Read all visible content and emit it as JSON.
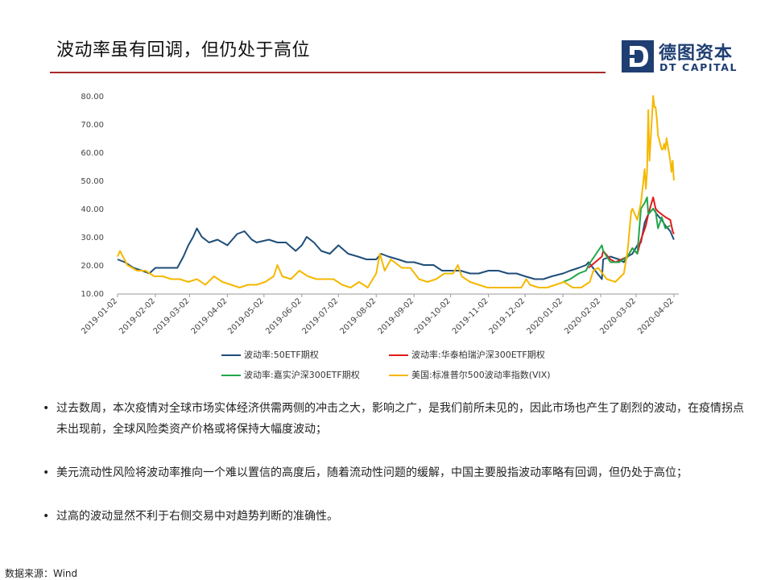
{
  "slide": {
    "title": "波动率虽有回调，但仍处于高位",
    "logo_cn": "德图资本",
    "logo_en": "DT CAPITAL",
    "source": "数据来源：Wind"
  },
  "bullets": [
    "过去数周，本次疫情对全球市场实体经济供需两侧的冲击之大，影响之广，是我们前所未见的，因此市场也产生了剧烈的波动，在疫情拐点未出现前，全球风险类资产价格或将保持大幅度波动；",
    "美元流动性风险将波动率推向一个难以置信的高度后，随着流动性问题的缓解，中国主要股指波动率略有回调，但仍处于高位；",
    "过高的波动显然不利于右侧交易中对趋势判断的准确性。"
  ],
  "colors": {
    "title_rule": "#a52a2a",
    "brand": "#1f3f73",
    "series_50etf": "#1f4e79",
    "series_huatai": "#e31a1c",
    "series_jiashi": "#22a64a",
    "series_vix": "#f5b800"
  },
  "chart_data": {
    "type": "line",
    "x_type": "date",
    "xlim": [
      "2019-01-02",
      "2020-04-06"
    ],
    "ylim": [
      10,
      80
    ],
    "yticks": [
      "10.00",
      "20.00",
      "30.00",
      "40.00",
      "50.00",
      "60.00",
      "70.00",
      "80.00"
    ],
    "xticks": [
      "2019-01-02",
      "2019-02-02",
      "2019-03-02",
      "2019-04-02",
      "2019-05-02",
      "2019-06-02",
      "2019-07-02",
      "2019-08-02",
      "2019-09-02",
      "2019-10-02",
      "2019-11-02",
      "2019-12-02",
      "2020-01-02",
      "2020-02-02",
      "2020-03-02",
      "2020-04-02"
    ],
    "grid": false,
    "legend_position": "bottom",
    "series": [
      {
        "name": "波动率:50ETF期权",
        "color": "#1f4e79",
        "points": [
          [
            "2019-01-02",
            22
          ],
          [
            "2019-01-08",
            21
          ],
          [
            "2019-01-15",
            19
          ],
          [
            "2019-01-22",
            18
          ],
          [
            "2019-01-28",
            17
          ],
          [
            "2019-02-02",
            19
          ],
          [
            "2019-02-12",
            19
          ],
          [
            "2019-02-20",
            19
          ],
          [
            "2019-02-25",
            23
          ],
          [
            "2019-03-01",
            27
          ],
          [
            "2019-03-05",
            30
          ],
          [
            "2019-03-08",
            33
          ],
          [
            "2019-03-12",
            30
          ],
          [
            "2019-03-18",
            28
          ],
          [
            "2019-03-25",
            29
          ],
          [
            "2019-04-02",
            27
          ],
          [
            "2019-04-10",
            31
          ],
          [
            "2019-04-16",
            32
          ],
          [
            "2019-04-22",
            29
          ],
          [
            "2019-04-26",
            28
          ],
          [
            "2019-05-06",
            29
          ],
          [
            "2019-05-13",
            28
          ],
          [
            "2019-05-20",
            28
          ],
          [
            "2019-05-28",
            25
          ],
          [
            "2019-06-02",
            27
          ],
          [
            "2019-06-06",
            30
          ],
          [
            "2019-06-12",
            28
          ],
          [
            "2019-06-18",
            25
          ],
          [
            "2019-06-25",
            24
          ],
          [
            "2019-07-02",
            27
          ],
          [
            "2019-07-10",
            24
          ],
          [
            "2019-07-18",
            23
          ],
          [
            "2019-07-25",
            22
          ],
          [
            "2019-08-02",
            22
          ],
          [
            "2019-08-06",
            24
          ],
          [
            "2019-08-12",
            23
          ],
          [
            "2019-08-20",
            22
          ],
          [
            "2019-08-27",
            21
          ],
          [
            "2019-09-02",
            21
          ],
          [
            "2019-09-10",
            20
          ],
          [
            "2019-09-18",
            20
          ],
          [
            "2019-09-25",
            18
          ],
          [
            "2019-10-02",
            18
          ],
          [
            "2019-10-10",
            18
          ],
          [
            "2019-10-18",
            17
          ],
          [
            "2019-10-25",
            17
          ],
          [
            "2019-11-02",
            18
          ],
          [
            "2019-11-10",
            18
          ],
          [
            "2019-11-18",
            17
          ],
          [
            "2019-11-25",
            17
          ],
          [
            "2019-12-02",
            16
          ],
          [
            "2019-12-10",
            15
          ],
          [
            "2019-12-17",
            15
          ],
          [
            "2019-12-24",
            16
          ],
          [
            "2020-01-02",
            17
          ],
          [
            "2020-01-08",
            18
          ],
          [
            "2020-01-15",
            19
          ],
          [
            "2020-01-21",
            20
          ],
          [
            "2020-01-23",
            21
          ],
          [
            "2020-02-03",
            15
          ],
          [
            "2020-02-04",
            22
          ],
          [
            "2020-02-10",
            23
          ],
          [
            "2020-02-17",
            22
          ],
          [
            "2020-02-21",
            21
          ],
          [
            "2020-02-24",
            23
          ],
          [
            "2020-02-28",
            24
          ],
          [
            "2020-03-03",
            27
          ],
          [
            "2020-03-06",
            28
          ],
          [
            "2020-03-09",
            35
          ],
          [
            "2020-03-12",
            38
          ],
          [
            "2020-03-16",
            40
          ],
          [
            "2020-03-19",
            38
          ],
          [
            "2020-03-23",
            36
          ],
          [
            "2020-03-26",
            34
          ],
          [
            "2020-03-30",
            32
          ],
          [
            "2020-04-01",
            30
          ],
          [
            "2020-04-02",
            29
          ]
        ]
      },
      {
        "name": "波动率:华泰柏瑞沪深300ETF期权",
        "color": "#e31a1c",
        "points": [
          [
            "2020-01-23",
            19
          ],
          [
            "2020-02-03",
            23
          ],
          [
            "2020-02-04",
            25
          ],
          [
            "2020-02-10",
            22
          ],
          [
            "2020-02-14",
            21
          ],
          [
            "2020-02-19",
            22
          ],
          [
            "2020-02-24",
            23
          ],
          [
            "2020-02-28",
            26
          ],
          [
            "2020-03-03",
            24
          ],
          [
            "2020-03-06",
            29
          ],
          [
            "2020-03-10",
            34
          ],
          [
            "2020-03-12",
            38
          ],
          [
            "2020-03-16",
            44
          ],
          [
            "2020-03-18",
            40
          ],
          [
            "2020-03-20",
            39
          ],
          [
            "2020-03-23",
            38
          ],
          [
            "2020-03-26",
            37
          ],
          [
            "2020-03-30",
            36
          ],
          [
            "2020-04-01",
            32
          ],
          [
            "2020-04-02",
            31
          ]
        ]
      },
      {
        "name": "波动率:嘉实沪深300ETF期权",
        "color": "#22a64a",
        "points": [
          [
            "2020-01-02",
            14
          ],
          [
            "2020-01-08",
            15
          ],
          [
            "2020-01-15",
            17
          ],
          [
            "2020-01-21",
            18
          ],
          [
            "2020-01-23",
            20
          ],
          [
            "2020-02-03",
            27
          ],
          [
            "2020-02-04",
            25
          ],
          [
            "2020-02-10",
            21
          ],
          [
            "2020-02-17",
            21
          ],
          [
            "2020-02-24",
            23
          ],
          [
            "2020-02-28",
            26
          ],
          [
            "2020-03-03",
            24
          ],
          [
            "2020-03-06",
            40
          ],
          [
            "2020-03-09",
            42
          ],
          [
            "2020-03-11",
            44
          ],
          [
            "2020-03-12",
            38
          ],
          [
            "2020-03-16",
            40
          ],
          [
            "2020-03-18",
            39
          ],
          [
            "2020-03-20",
            33
          ],
          [
            "2020-03-23",
            37
          ],
          [
            "2020-03-26",
            33
          ],
          [
            "2020-03-30",
            34
          ]
        ]
      },
      {
        "name": "美国:标准普尔500波动率指数(VIX)",
        "color": "#f5b800",
        "points": [
          [
            "2019-01-02",
            23
          ],
          [
            "2019-01-04",
            25
          ],
          [
            "2019-01-10",
            20
          ],
          [
            "2019-01-18",
            18
          ],
          [
            "2019-01-25",
            18
          ],
          [
            "2019-02-01",
            16
          ],
          [
            "2019-02-08",
            16
          ],
          [
            "2019-02-15",
            15
          ],
          [
            "2019-02-22",
            15
          ],
          [
            "2019-03-01",
            14
          ],
          [
            "2019-03-08",
            15
          ],
          [
            "2019-03-15",
            13
          ],
          [
            "2019-03-22",
            16
          ],
          [
            "2019-03-29",
            14
          ],
          [
            "2019-04-05",
            13
          ],
          [
            "2019-04-12",
            12
          ],
          [
            "2019-04-19",
            13
          ],
          [
            "2019-04-26",
            13
          ],
          [
            "2019-05-03",
            14
          ],
          [
            "2019-05-10",
            16
          ],
          [
            "2019-05-13",
            20
          ],
          [
            "2019-05-17",
            16
          ],
          [
            "2019-05-24",
            15
          ],
          [
            "2019-05-31",
            18
          ],
          [
            "2019-06-07",
            16
          ],
          [
            "2019-06-14",
            15
          ],
          [
            "2019-06-21",
            15
          ],
          [
            "2019-06-28",
            15
          ],
          [
            "2019-07-05",
            13
          ],
          [
            "2019-07-12",
            12
          ],
          [
            "2019-07-19",
            14
          ],
          [
            "2019-07-26",
            12
          ],
          [
            "2019-08-02",
            17
          ],
          [
            "2019-08-05",
            24
          ],
          [
            "2019-08-09",
            18
          ],
          [
            "2019-08-14",
            22
          ],
          [
            "2019-08-23",
            19
          ],
          [
            "2019-08-30",
            19
          ],
          [
            "2019-09-06",
            15
          ],
          [
            "2019-09-13",
            14
          ],
          [
            "2019-09-20",
            15
          ],
          [
            "2019-09-27",
            17
          ],
          [
            "2019-10-04",
            17
          ],
          [
            "2019-10-08",
            20
          ],
          [
            "2019-10-11",
            16
          ],
          [
            "2019-10-18",
            14
          ],
          [
            "2019-10-25",
            13
          ],
          [
            "2019-11-01",
            12
          ],
          [
            "2019-11-08",
            12
          ],
          [
            "2019-11-15",
            12
          ],
          [
            "2019-11-22",
            12
          ],
          [
            "2019-11-29",
            12
          ],
          [
            "2019-12-03",
            15
          ],
          [
            "2019-12-06",
            13
          ],
          [
            "2019-12-13",
            12
          ],
          [
            "2019-12-20",
            12
          ],
          [
            "2019-12-27",
            13
          ],
          [
            "2020-01-03",
            14
          ],
          [
            "2020-01-10",
            12
          ],
          [
            "2020-01-17",
            12
          ],
          [
            "2020-01-24",
            14
          ],
          [
            "2020-01-27",
            18
          ],
          [
            "2020-01-31",
            19
          ],
          [
            "2020-02-07",
            15
          ],
          [
            "2020-02-14",
            14
          ],
          [
            "2020-02-21",
            17
          ],
          [
            "2020-02-24",
            25
          ],
          [
            "2020-02-27",
            39
          ],
          [
            "2020-02-28",
            40
          ],
          [
            "2020-03-03",
            36
          ],
          [
            "2020-03-06",
            42
          ],
          [
            "2020-03-09",
            54
          ],
          [
            "2020-03-10",
            47
          ],
          [
            "2020-03-11",
            53
          ],
          [
            "2020-03-12",
            75
          ],
          [
            "2020-03-13",
            57
          ],
          [
            "2020-03-16",
            82
          ],
          [
            "2020-03-17",
            76
          ],
          [
            "2020-03-18",
            76
          ],
          [
            "2020-03-19",
            72
          ],
          [
            "2020-03-20",
            66
          ],
          [
            "2020-03-23",
            61
          ],
          [
            "2020-03-24",
            61
          ],
          [
            "2020-03-25",
            63
          ],
          [
            "2020-03-26",
            61
          ],
          [
            "2020-03-27",
            65
          ],
          [
            "2020-03-30",
            57
          ],
          [
            "2020-03-31",
            53
          ],
          [
            "2020-04-01",
            57
          ],
          [
            "2020-04-02",
            50
          ]
        ]
      }
    ]
  }
}
